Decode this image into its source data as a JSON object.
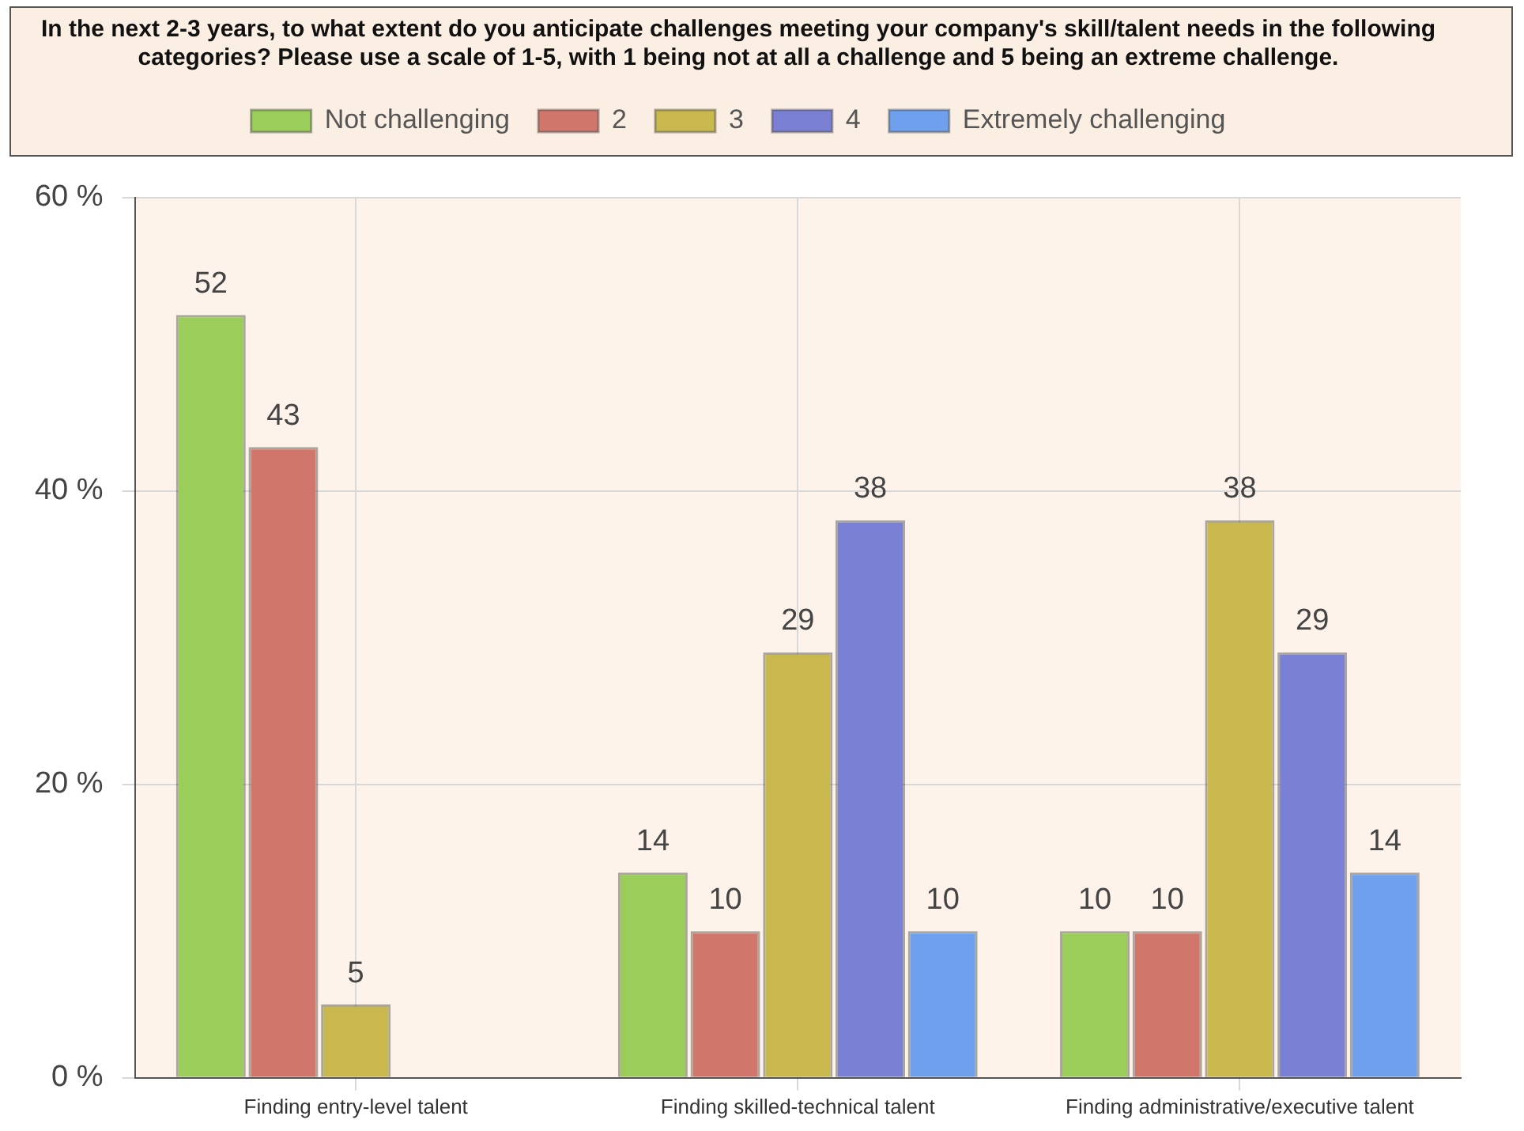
{
  "chart_data": {
    "type": "bar",
    "title": "In the next 2-3 years, to what extent do you anticipate challenges meeting your company's skill/talent needs in the following categories? Please use a scale of 1-5, with 1 being not at all a challenge and 5 being an extreme challenge.",
    "categories": [
      "Finding entry-level talent",
      "Finding skilled-technical talent",
      "Finding administrative/executive talent"
    ],
    "series": [
      {
        "name": "Not challenging",
        "color": "#9acd5a",
        "values": [
          52,
          14,
          10
        ]
      },
      {
        "name": "2",
        "color": "#d0766a",
        "values": [
          43,
          10,
          10
        ]
      },
      {
        "name": "3",
        "color": "#c8b84e",
        "values": [
          5,
          29,
          38
        ]
      },
      {
        "name": "4",
        "color": "#7a80d4",
        "values": [
          null,
          38,
          29
        ]
      },
      {
        "name": "Extremely challenging",
        "color": "#6fa0ee",
        "values": [
          null,
          10,
          14
        ]
      }
    ],
    "ylim": [
      0,
      60
    ],
    "yticks": [
      {
        "value": 0,
        "label": "0 %"
      },
      {
        "value": 20,
        "label": "20 %"
      },
      {
        "value": 40,
        "label": "40 %"
      },
      {
        "value": 60,
        "label": "60 %"
      }
    ],
    "grid": true,
    "legend": "top",
    "data_labels": true
  }
}
